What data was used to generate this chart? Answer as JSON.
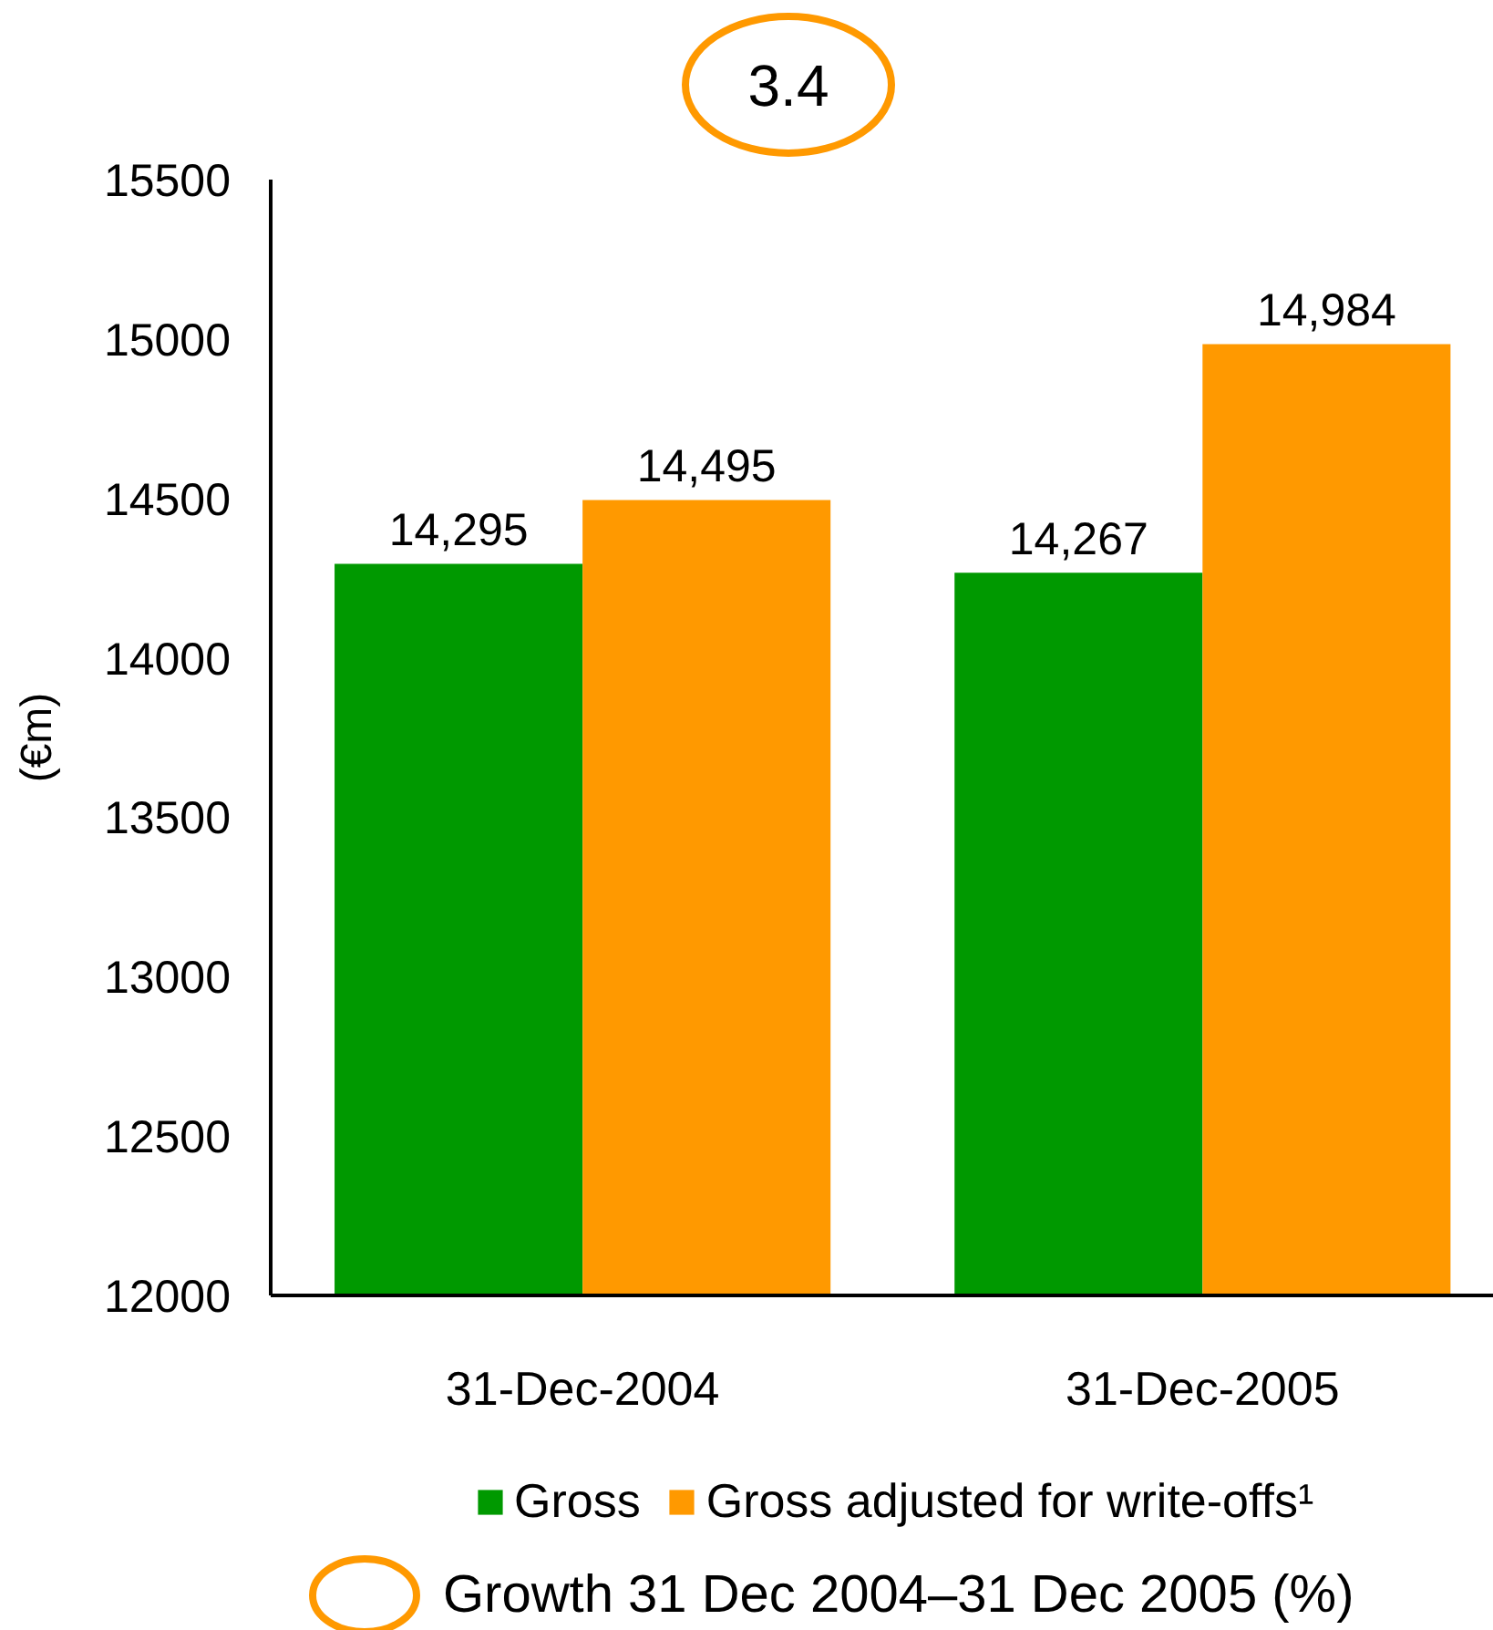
{
  "chart_data": {
    "type": "bar",
    "categories": [
      "31-Dec-2004",
      "31-Dec-2005"
    ],
    "ylabel": "(€m)",
    "series": [
      {
        "name": "Gross",
        "color": "#009900",
        "values": [
          14295,
          14267
        ],
        "value_labels": [
          "14,295",
          "14,267"
        ]
      },
      {
        "name": "Gross adjusted for write-offs¹",
        "color": "#ff9900",
        "values": [
          14495,
          14984
        ],
        "value_labels": [
          "14,495",
          "14,984"
        ]
      }
    ],
    "ylim": [
      12000,
      15500
    ],
    "yticks": [
      12000,
      12500,
      13000,
      13500,
      14000,
      14500,
      15000,
      15500
    ],
    "legend": "bottom",
    "annotations": [
      "3.4",
      "Growth 31 Dec 2004–31 Dec 2005 (%)"
    ]
  }
}
